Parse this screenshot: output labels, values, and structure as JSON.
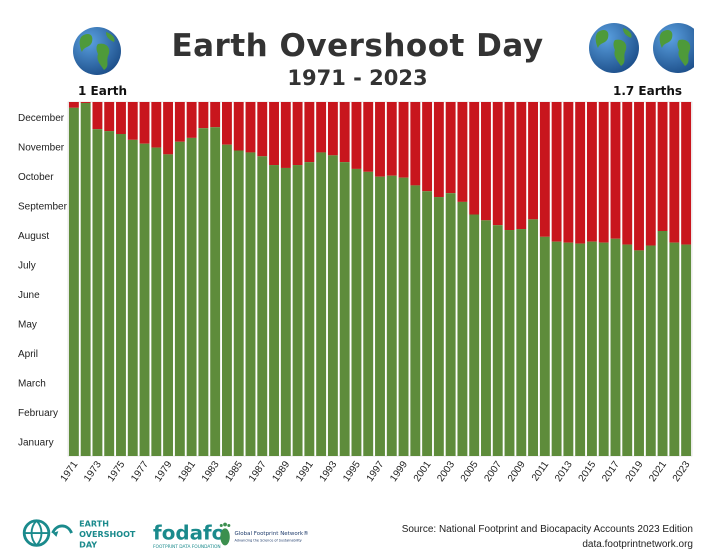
{
  "chart_data": {
    "type": "bar",
    "title": "Earth Overshoot Day",
    "subtitle": "1971 - 2023",
    "stacked": true,
    "y_ticks": [
      "December",
      "November",
      "October",
      "September",
      "August",
      "July",
      "June",
      "May",
      "April",
      "March",
      "February",
      "January"
    ],
    "ylim_day_of_year": [
      0,
      365
    ],
    "series": [
      {
        "name": "",
        "color": "#5e8c3b"
      },
      {
        "name": "",
        "color": "#c8161d"
      }
    ],
    "x_labels": [
      "1971",
      "1973",
      "1975",
      "1977",
      "1979",
      "1981",
      "1983",
      "1985",
      "1987",
      "1989",
      "1991",
      "1993",
      "1995",
      "1997",
      "1999",
      "2001",
      "2003",
      "2005",
      "2007",
      "2009",
      "2011",
      "2013",
      "2015",
      "2017",
      "2019",
      "2021",
      "2023"
    ],
    "x": [
      1971,
      1972,
      1973,
      1974,
      1975,
      1976,
      1977,
      1978,
      1979,
      1980,
      1981,
      1982,
      1983,
      1984,
      1985,
      1986,
      1987,
      1988,
      1989,
      1990,
      1991,
      1992,
      1993,
      1994,
      1995,
      1996,
      1997,
      1998,
      1999,
      2000,
      2001,
      2002,
      2003,
      2004,
      2005,
      2006,
      2007,
      2008,
      2009,
      2010,
      2011,
      2012,
      2013,
      2014,
      2015,
      2016,
      2017,
      2018,
      2019,
      2020,
      2021,
      2022,
      2023
    ],
    "overshoot_day_of_year": [
      359,
      364,
      337,
      335,
      332,
      326,
      322,
      318,
      311,
      324,
      328,
      338,
      339,
      321,
      315,
      313,
      309,
      300,
      297,
      300,
      303,
      313,
      310,
      303,
      296,
      293,
      288,
      289,
      287,
      279,
      273,
      267,
      271,
      262,
      249,
      243,
      238,
      233,
      234,
      244,
      226,
      221,
      220,
      219,
      221,
      220,
      224,
      218,
      212,
      217,
      232,
      220,
      218
    ]
  },
  "globes": {
    "left_label": "1 Earth",
    "right_label": "1.7 Earths",
    "ocean_color": "#2c72b8",
    "land_color": "#4e9a3a"
  },
  "footer": {
    "logo1_line1": "EARTH",
    "logo1_line2": "OVERSHOOT",
    "logo1_line3": "DAY",
    "logo2_name": "fodafo",
    "logo2_caption": "FOOTPRINT DATA FOUNDATION",
    "logo3_name": "Global Footprint Network®",
    "logo3_caption": "Advancing the Science of Sustainability",
    "source_line": "Source: National Footprint and Biocapacity Accounts 2023 Edition",
    "source_url": "data.footprintnetwork.org",
    "logo_color": "#1a8a8c"
  }
}
